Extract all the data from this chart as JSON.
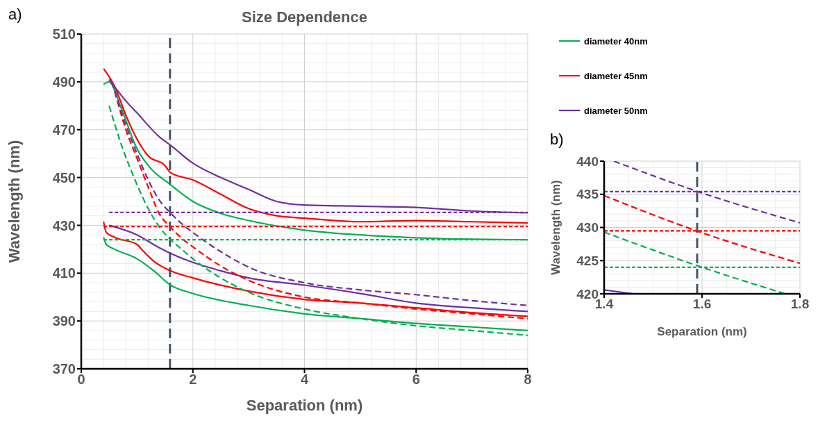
{
  "chart_data": [
    {
      "type": "line",
      "title": "Size Dependence",
      "xlabel": "Separation (nm)",
      "ylabel": "Wavelength (nm)",
      "annotations": [
        "a)"
      ],
      "xlim": [
        0,
        8
      ],
      "xticks": [
        0,
        2,
        4,
        6,
        8
      ],
      "ylim": [
        370,
        510
      ],
      "yticks": [
        370,
        390,
        410,
        430,
        450,
        470,
        490,
        510
      ],
      "grid": true,
      "legend": "right",
      "line_style": "solid",
      "marker": "none",
      "ref_lines": [
        {
          "axis": "x",
          "value": 1.59,
          "color": "#44546a",
          "line_style": "dashed"
        }
      ],
      "series": [
        {
          "name": "diameter 40nm",
          "color": "#00b050",
          "x": [
            0.4,
            0.5,
            0.7,
            1.0,
            1.2,
            1.6,
            2,
            2.5,
            3,
            4,
            5,
            6,
            7,
            8
          ],
          "values": [
            489,
            490,
            480,
            462,
            455,
            447,
            440,
            435,
            432,
            428,
            426,
            424.8,
            424.2,
            424
          ]
        },
        {
          "name": "diameter 45nm",
          "color": "#ff0000",
          "x": [
            0.4,
            0.6,
            0.8,
            1.0,
            1.2,
            1.5,
            1.6,
            2,
            2.5,
            3,
            3.5,
            4,
            5,
            6,
            7,
            8
          ],
          "values": [
            495.5,
            488,
            476,
            466,
            459,
            455,
            452,
            449,
            443,
            437,
            434,
            433,
            431.5,
            432,
            431.5,
            431
          ]
        },
        {
          "name": "diameter 50nm",
          "color": "#7030a0",
          "x": [
            0.5,
            0.8,
            1,
            1.4,
            1.6,
            2,
            2.5,
            3,
            3.5,
            4,
            5,
            6,
            7,
            8
          ],
          "values": [
            491,
            482,
            477,
            467,
            463.5,
            456,
            450,
            445,
            440,
            438.5,
            438,
            437.5,
            436,
            435.2
          ]
        },
        {
          "color": "#00b050",
          "x": [
            0.4,
            0.45,
            0.6,
            1,
            1.3,
            1.6,
            2,
            3,
            4,
            5,
            6,
            7,
            8
          ],
          "values": [
            425,
            422,
            420,
            416,
            411,
            405,
            401.5,
            396.5,
            393,
            391,
            389,
            387.5,
            386
          ]
        },
        {
          "color": "#ff0000",
          "x": [
            0.4,
            0.45,
            0.6,
            1.0,
            1.1,
            1.3,
            1.6,
            2,
            3,
            4,
            5,
            6,
            7,
            8
          ],
          "values": [
            431.5,
            427,
            425,
            422,
            419.5,
            415,
            411,
            408,
            402.5,
            399,
            397.5,
            395.5,
            393.5,
            392
          ]
        },
        {
          "color": "#7030a0",
          "x": [
            0.5,
            1,
            1.4,
            1.6,
            2,
            2.5,
            3,
            4,
            5,
            6,
            7,
            8
          ],
          "values": [
            430,
            426,
            420.6,
            418.3,
            414.5,
            411,
            408,
            405,
            401.5,
            397.5,
            395.5,
            394
          ]
        },
        {
          "color": "#00b050",
          "line_style": "dashed",
          "x": [
            0.5,
            0.7,
            1,
            1.2,
            1.4,
            1.6,
            1.8,
            2,
            2.5,
            3,
            4,
            5,
            6,
            7,
            8
          ],
          "values": [
            480,
            465,
            447,
            437,
            429.3,
            424,
            420,
            416,
            408,
            402,
            395,
            391,
            388,
            386,
            384
          ]
        },
        {
          "color": "#ff0000",
          "line_style": "dashed",
          "x": [
            0.6,
            0.8,
            1,
            1.2,
            1.4,
            1.6,
            1.8,
            2,
            2.5,
            3,
            4,
            5,
            6,
            7,
            8
          ],
          "values": [
            486,
            470,
            458,
            446,
            434.8,
            429.2,
            424.6,
            421,
            413,
            407,
            400,
            397.5,
            395,
            393,
            391
          ]
        },
        {
          "color": "#7030a0",
          "line_style": "dashed",
          "x": [
            0.55,
            0.8,
            1,
            1.2,
            1.4,
            1.6,
            1.8,
            2,
            2.5,
            3,
            4,
            5,
            6,
            7,
            8
          ],
          "values": [
            490,
            472,
            460,
            449,
            440.5,
            435.2,
            430.7,
            427,
            419,
            412.5,
            406,
            403,
            401,
            398.5,
            396.5
          ]
        },
        {
          "color": "#00b050",
          "line_style": "dotted",
          "x": [
            0.4,
            8
          ],
          "values": [
            424,
            424
          ]
        },
        {
          "color": "#ff0000",
          "line_style": "dotted",
          "x": [
            0.4,
            8
          ],
          "values": [
            429.5,
            429.5
          ]
        },
        {
          "color": "#7030a0",
          "line_style": "dotted",
          "x": [
            0.5,
            8
          ],
          "values": [
            435.4,
            435.4
          ]
        }
      ]
    },
    {
      "type": "line",
      "xlabel": "Separation (nm)",
      "ylabel": "Wavelength (nm)",
      "annotations": [
        "b)"
      ],
      "xlim": [
        1.4,
        1.8
      ],
      "xticks": [
        1.4,
        1.6,
        1.8
      ],
      "ylim": [
        420,
        440
      ],
      "yticks": [
        420,
        425,
        430,
        435,
        440
      ],
      "grid": true,
      "line_style": "dashed",
      "marker": "none",
      "ref_lines": [
        {
          "axis": "x",
          "value": 1.59,
          "color": "#44546a",
          "line_style": "dashed"
        }
      ],
      "series": [
        {
          "color": "#7030a0",
          "x": [
            1.42,
            1.6,
            1.8
          ],
          "values": [
            440,
            435.2,
            430.7
          ]
        },
        {
          "color": "#ff0000",
          "x": [
            1.4,
            1.6,
            1.8
          ],
          "values": [
            434.8,
            429.2,
            424.6
          ]
        },
        {
          "color": "#00b050",
          "x": [
            1.4,
            1.6,
            1.77
          ],
          "values": [
            429.3,
            424,
            420
          ]
        },
        {
          "color": "#7030a0",
          "line_style": "dotted",
          "x": [
            1.4,
            1.8
          ],
          "values": [
            435.4,
            435.4
          ]
        },
        {
          "color": "#ff0000",
          "line_style": "dotted",
          "x": [
            1.4,
            1.8
          ],
          "values": [
            429.5,
            429.5
          ]
        },
        {
          "color": "#00b050",
          "line_style": "dotted",
          "x": [
            1.4,
            1.8
          ],
          "values": [
            424,
            424
          ]
        },
        {
          "color": "#7030a0",
          "line_style": "solid",
          "x": [
            1.4,
            1.46
          ],
          "values": [
            420.6,
            420
          ]
        }
      ]
    }
  ]
}
